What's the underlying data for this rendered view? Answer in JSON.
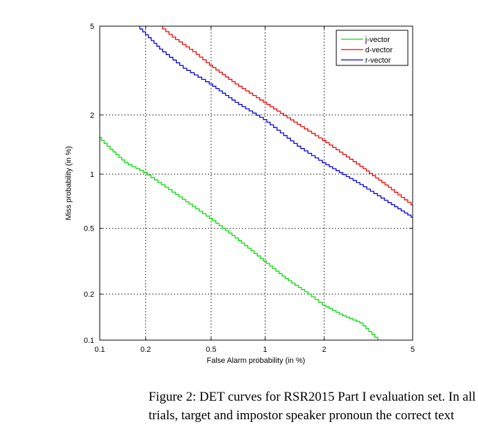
{
  "chart_data": {
    "type": "line",
    "title": "",
    "xlabel": "False Alarm probability (in %)",
    "ylabel": "Miss probability (in %)",
    "xscale": "probit",
    "yscale": "probit",
    "xlim": [
      0.1,
      5
    ],
    "ylim": [
      0.1,
      5
    ],
    "xticks": [
      0.1,
      0.2,
      0.5,
      1,
      2,
      5
    ],
    "xtick_labels": [
      "0.1",
      "0.2",
      "0.5",
      "1",
      "2",
      "5"
    ],
    "yticks": [
      0.1,
      0.2,
      0.5,
      1,
      2,
      5
    ],
    "ytick_labels": [
      "0.1",
      "0.2",
      "0.5",
      "1",
      "2",
      "5"
    ],
    "grid": true,
    "grid_style": "dotted",
    "legend_position": "top-right",
    "series": [
      {
        "name": "j-vector",
        "color": "#00dd00",
        "x": [
          0.1,
          0.12,
          0.15,
          0.2,
          0.3,
          0.5,
          0.7,
          1.0,
          1.3,
          1.7,
          2.0,
          2.5,
          3.0,
          3.6
        ],
        "y": [
          1.55,
          1.35,
          1.15,
          1.02,
          0.8,
          0.57,
          0.44,
          0.32,
          0.25,
          0.2,
          0.17,
          0.145,
          0.13,
          0.1
        ]
      },
      {
        "name": "d-vector",
        "color": "#ee0000",
        "x": [
          0.25,
          0.3,
          0.4,
          0.5,
          0.7,
          1.0,
          1.5,
          2.0,
          3.0,
          4.0,
          5.0
        ],
        "y": [
          5.0,
          4.5,
          3.9,
          3.4,
          2.8,
          2.3,
          1.8,
          1.5,
          1.1,
          0.85,
          0.68
        ]
      },
      {
        "name": "r-vector",
        "color": "#0000dd",
        "x": [
          0.18,
          0.25,
          0.35,
          0.5,
          0.7,
          1.0,
          1.5,
          2.0,
          3.0,
          4.0,
          5.0
        ],
        "y": [
          5.0,
          4.0,
          3.3,
          2.8,
          2.3,
          1.9,
          1.4,
          1.15,
          0.88,
          0.7,
          0.58
        ]
      }
    ]
  },
  "caption": {
    "line1": "Figure 2: DET curves for RSR2015 Part I evaluation set. In all",
    "line2": "trials, target and impostor speaker pronoun the correct text"
  }
}
